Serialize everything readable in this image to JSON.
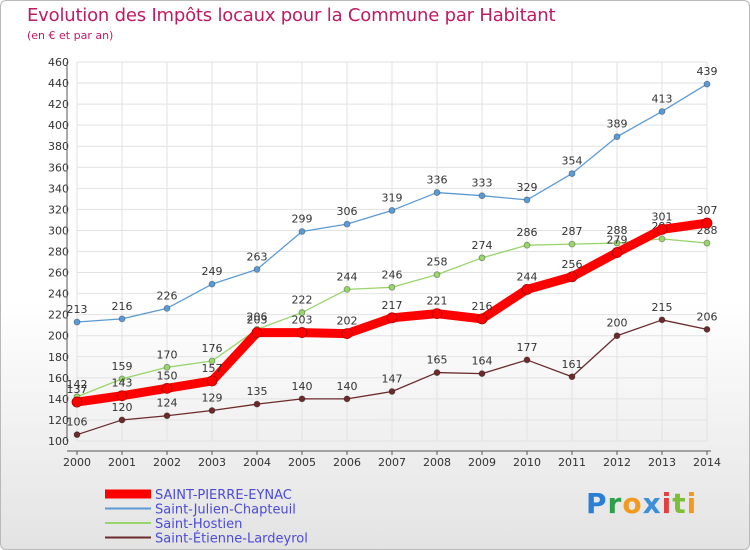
{
  "header": {
    "title": "Evolution des Impôts locaux pour la Commune par Habitant",
    "subtitle": "(en € et par an)"
  },
  "brand": {
    "letters": [
      "P",
      "r",
      "o",
      "x",
      "i",
      "t",
      "i"
    ],
    "colors": [
      "#2a7fd4",
      "#2aa14a",
      "#f39a1e",
      "#3d8fd9",
      "#e43e3e",
      "#7cbd3a",
      "#f39a1e"
    ]
  },
  "chart_data": {
    "type": "line",
    "title": "Evolution des Impôts locaux pour la Commune par Habitant",
    "subtitle": "(en € et par an)",
    "x": [
      "2000",
      "2001",
      "2002",
      "2003",
      "2004",
      "2005",
      "2006",
      "2007",
      "2008",
      "2009",
      "2010",
      "2011",
      "2012",
      "2013",
      "2014"
    ],
    "ylim": [
      100,
      460
    ],
    "yticks": [
      100,
      120,
      140,
      160,
      180,
      200,
      220,
      240,
      260,
      280,
      300,
      320,
      340,
      360,
      380,
      400,
      420,
      440,
      460
    ],
    "grid": true,
    "legend_position": "bottom-left",
    "series": [
      {
        "name": "Saint-Julien-Chapteuil",
        "color": "#5b9bd5",
        "emphasis": false,
        "values": [
          213,
          216,
          226,
          249,
          263,
          299,
          306,
          319,
          336,
          333,
          329,
          354,
          389,
          413,
          439
        ]
      },
      {
        "name": "Saint-Hostien",
        "color": "#99d56b",
        "emphasis": false,
        "values": [
          142,
          159,
          170,
          176,
          206,
          222,
          244,
          246,
          258,
          274,
          286,
          287,
          288,
          292,
          288
        ]
      },
      {
        "name": "Saint-Étienne-Lardeyrol",
        "color": "#6b2b2b",
        "emphasis": false,
        "values": [
          106,
          120,
          124,
          129,
          135,
          140,
          140,
          147,
          165,
          164,
          177,
          161,
          200,
          215,
          206
        ]
      },
      {
        "name": "SAINT-PIERRE-EYNAC",
        "color": "#ff0000",
        "emphasis": true,
        "values": [
          137,
          143,
          150,
          157,
          203,
          203,
          202,
          217,
          221,
          216,
          244,
          256,
          279,
          301,
          307
        ]
      }
    ],
    "legend_order": [
      "SAINT-PIERRE-EYNAC",
      "Saint-Julien-Chapteuil",
      "Saint-Hostien",
      "Saint-Étienne-Lardeyrol"
    ],
    "legend_text_color": "#4b4bd6"
  }
}
